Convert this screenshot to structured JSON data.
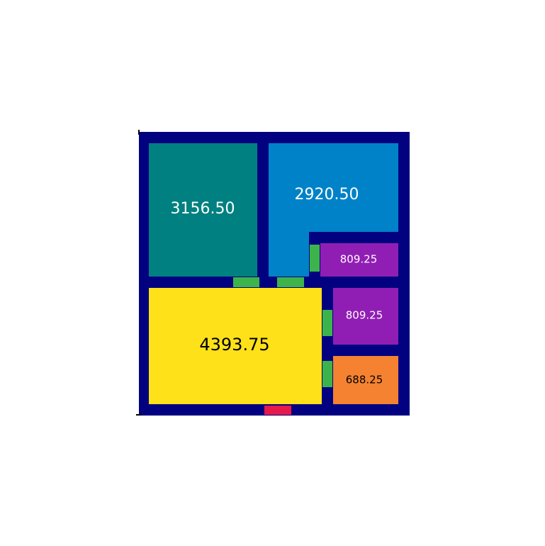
{
  "colors": {
    "wall": "#020281",
    "door": "#3cb44b",
    "entrance": "#e6194b",
    "background": "#ffffff"
  },
  "rooms": [
    {
      "id": "room-1",
      "area": "3156.50",
      "color": "#008080",
      "label_color": "#ffffff"
    },
    {
      "id": "room-2",
      "area": "2920.50",
      "color": "#0082c8",
      "label_color": "#ffffff"
    },
    {
      "id": "room-3",
      "area": "809.25",
      "color": "#911eb4",
      "label_color": "#ffffff"
    },
    {
      "id": "room-4",
      "area": "4393.75",
      "color": "#ffe119",
      "label_color": "#000000"
    },
    {
      "id": "room-5",
      "area": "809.25",
      "color": "#911eb4",
      "label_color": "#ffffff"
    },
    {
      "id": "room-6",
      "area": "688.25",
      "color": "#f58231",
      "label_color": "#000000"
    }
  ]
}
